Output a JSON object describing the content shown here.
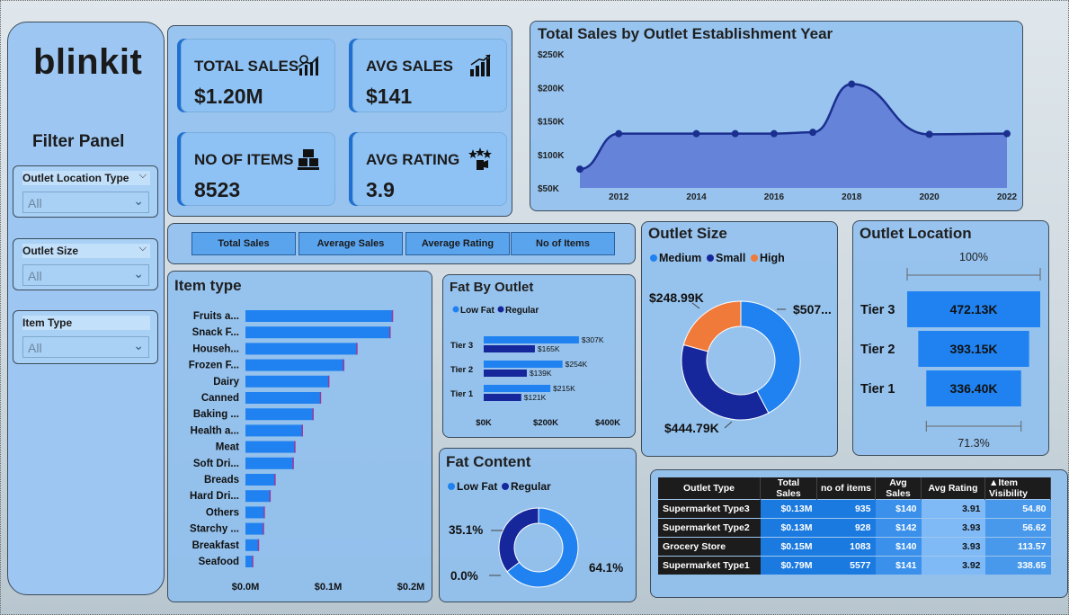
{
  "brand": "blinkit",
  "filter_panel": {
    "title": "Filter Panel",
    "slicers": [
      {
        "label": "Outlet Location Type",
        "value": "All"
      },
      {
        "label": "Outlet Size",
        "value": "All"
      },
      {
        "label": "Item Type",
        "value": "All"
      }
    ]
  },
  "kpis": [
    {
      "title": "TOTAL SALES",
      "value": "$1.20M",
      "icon": "chart-growth-icon"
    },
    {
      "title": "AVG SALES",
      "value": "$141",
      "icon": "bar-growth-icon"
    },
    {
      "title": "NO OF ITEMS",
      "value": "8523",
      "icon": "boxes-icon"
    },
    {
      "title": "AVG RATING",
      "value": "3.9",
      "icon": "rating-stars-icon"
    }
  ],
  "buttons": [
    "Total Sales",
    "Average Sales",
    "Average Rating",
    "No of Items"
  ],
  "colors": {
    "primary": "#1f82f0",
    "dark_blue": "#16279c",
    "orange": "#f07a3a",
    "line": "#1b2f8f",
    "area": "#5d78d6"
  },
  "chart_data": [
    {
      "type": "area",
      "title": "Total Sales by Outlet Establishment Year",
      "x": [
        2011,
        2012,
        2014,
        2015,
        2016,
        2017,
        2018,
        2020,
        2022
      ],
      "y": [
        78,
        131,
        131,
        131,
        131,
        133,
        205,
        130,
        131
      ],
      "y_unit": "K",
      "ylim": [
        50,
        250
      ],
      "yticks": [
        "$50K",
        "$100K",
        "$150K",
        "$200K",
        "$250K"
      ],
      "xticks": [
        "2012",
        "2014",
        "2016",
        "2018",
        "2020",
        "2022"
      ]
    },
    {
      "type": "bar",
      "title": "Item type",
      "categories": [
        "Fruits a...",
        "Snack F...",
        "Househ...",
        "Frozen F...",
        "Dairy",
        "Canned",
        "Baking ...",
        "Health a...",
        "Meat",
        "Soft Dri...",
        "Breads",
        "Hard Dri...",
        "Others",
        "Starchy ...",
        "Breakfast",
        "Seafood"
      ],
      "values": [
        0.178,
        0.175,
        0.135,
        0.119,
        0.101,
        0.091,
        0.082,
        0.069,
        0.06,
        0.058,
        0.036,
        0.03,
        0.023,
        0.022,
        0.016,
        0.009
      ],
      "xticks": [
        "$0.0M",
        "$0.1M",
        "$0.2M"
      ],
      "xlim": [
        0,
        0.2
      ]
    },
    {
      "type": "bar",
      "title": "Fat By Outlet",
      "legend": [
        "Low Fat",
        "Regular"
      ],
      "categories": [
        "Tier 3",
        "Tier 2",
        "Tier 1"
      ],
      "series": [
        {
          "name": "Low Fat",
          "values": [
            307,
            254,
            215
          ],
          "labels": [
            "$307K",
            "$254K",
            "$215K"
          ]
        },
        {
          "name": "Regular",
          "values": [
            165,
            139,
            121
          ],
          "labels": [
            "$165K",
            "$139K",
            "$121K"
          ]
        }
      ],
      "xticks": [
        "$0K",
        "$200K",
        "$400K"
      ],
      "xlim": [
        0,
        400
      ]
    },
    {
      "type": "pie",
      "title": "Fat Content",
      "legend": [
        "Low Fat",
        "Regular"
      ],
      "slices": [
        {
          "name": "Low Fat",
          "value": 64.1,
          "label": "64.1%"
        },
        {
          "name": "Regular",
          "value": 35.1,
          "label": "35.1%"
        },
        {
          "name": "",
          "value": 0.0,
          "label": "0.0%"
        }
      ]
    },
    {
      "type": "pie",
      "title": "Outlet Size",
      "legend": [
        "Medium",
        "Small",
        "High"
      ],
      "slices": [
        {
          "name": "Medium",
          "value": 507.9,
          "label": "$507..."
        },
        {
          "name": "Small",
          "value": 444.79,
          "label": "$444.79K"
        },
        {
          "name": "High",
          "value": 248.99,
          "label": "$248.99K"
        }
      ]
    },
    {
      "type": "bar",
      "title": "Outlet Location",
      "categories": [
        "Tier 3",
        "Tier 2",
        "Tier 1"
      ],
      "values": [
        472.13,
        393.15,
        336.4
      ],
      "labels": [
        "472.13K",
        "393.15K",
        "336.40K"
      ],
      "top_label": "100%",
      "bottom_label": "71.3%"
    },
    {
      "type": "table",
      "columns": [
        "Outlet Type",
        "Total Sales",
        "no of items",
        "Avg Sales",
        "Avg Rating",
        "Item Visibility"
      ],
      "rows": [
        [
          "Supermarket Type3",
          "$0.13M",
          "935",
          "$140",
          "3.91",
          "54.80"
        ],
        [
          "Supermarket Type2",
          "$0.13M",
          "928",
          "$142",
          "3.93",
          "56.62"
        ],
        [
          "Grocery Store",
          "$0.15M",
          "1083",
          "$140",
          "3.93",
          "113.57"
        ],
        [
          "Supermarket Type1",
          "$0.79M",
          "5577",
          "$141",
          "3.92",
          "338.65"
        ]
      ]
    }
  ]
}
